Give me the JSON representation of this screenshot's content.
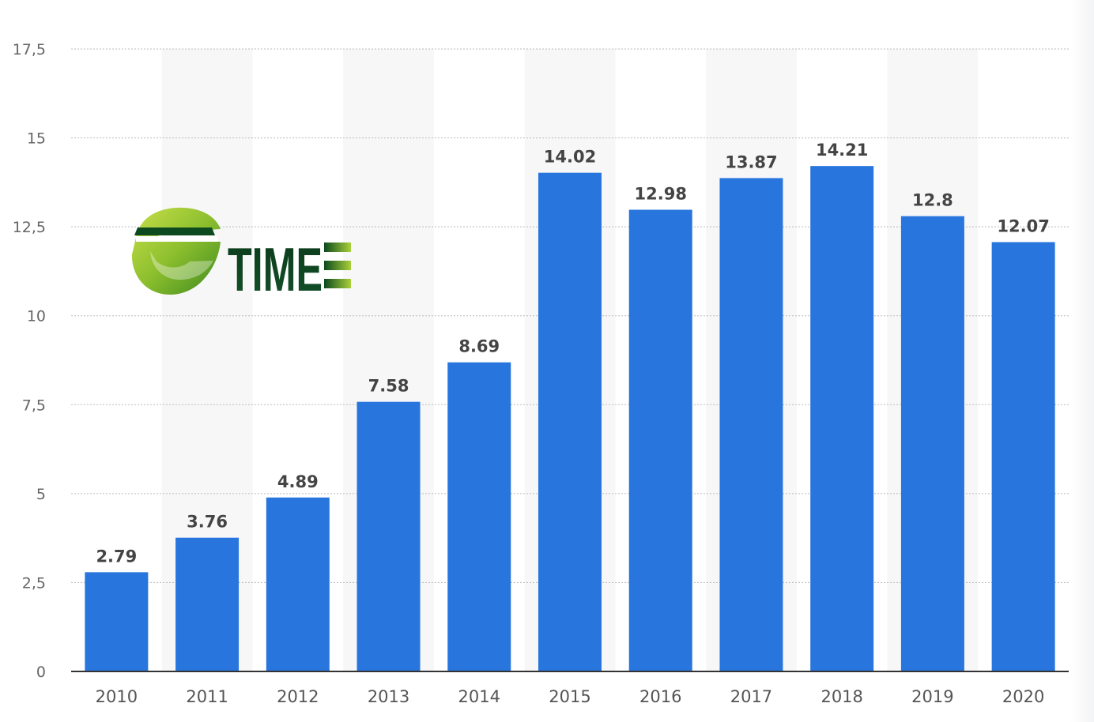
{
  "logo": {
    "text": "TIME",
    "name": "eTIME"
  },
  "colors": {
    "bar": "#2876dd",
    "band": "#f7f7f8",
    "grid": "#bbbbbb",
    "axis": "#333333",
    "logo_dark": "#0c3d1c",
    "logo_light": "#9bc63a"
  },
  "chart_data": {
    "type": "bar",
    "categories": [
      "2010",
      "2011",
      "2012",
      "2013",
      "2014",
      "2015",
      "2016",
      "2017",
      "2018",
      "2019",
      "2020"
    ],
    "values": [
      2.79,
      3.76,
      4.89,
      7.58,
      8.69,
      14.02,
      12.98,
      13.87,
      14.21,
      12.8,
      12.07
    ],
    "value_labels": [
      "2.79",
      "3.76",
      "4.89",
      "7.58",
      "8.69",
      "14.02",
      "12.98",
      "13.87",
      "14.21",
      "12.8",
      "12.07"
    ],
    "yticks": [
      0,
      2.5,
      5,
      7.5,
      10,
      12.5,
      15,
      17.5
    ],
    "ytick_labels": [
      "0",
      "2,5",
      "5",
      "7,5",
      "10",
      "12,5",
      "15",
      "17,5"
    ],
    "ylim": [
      0,
      17.5
    ],
    "grid": true,
    "alternating_bands": true,
    "title": "",
    "xlabel": "",
    "ylabel": ""
  }
}
